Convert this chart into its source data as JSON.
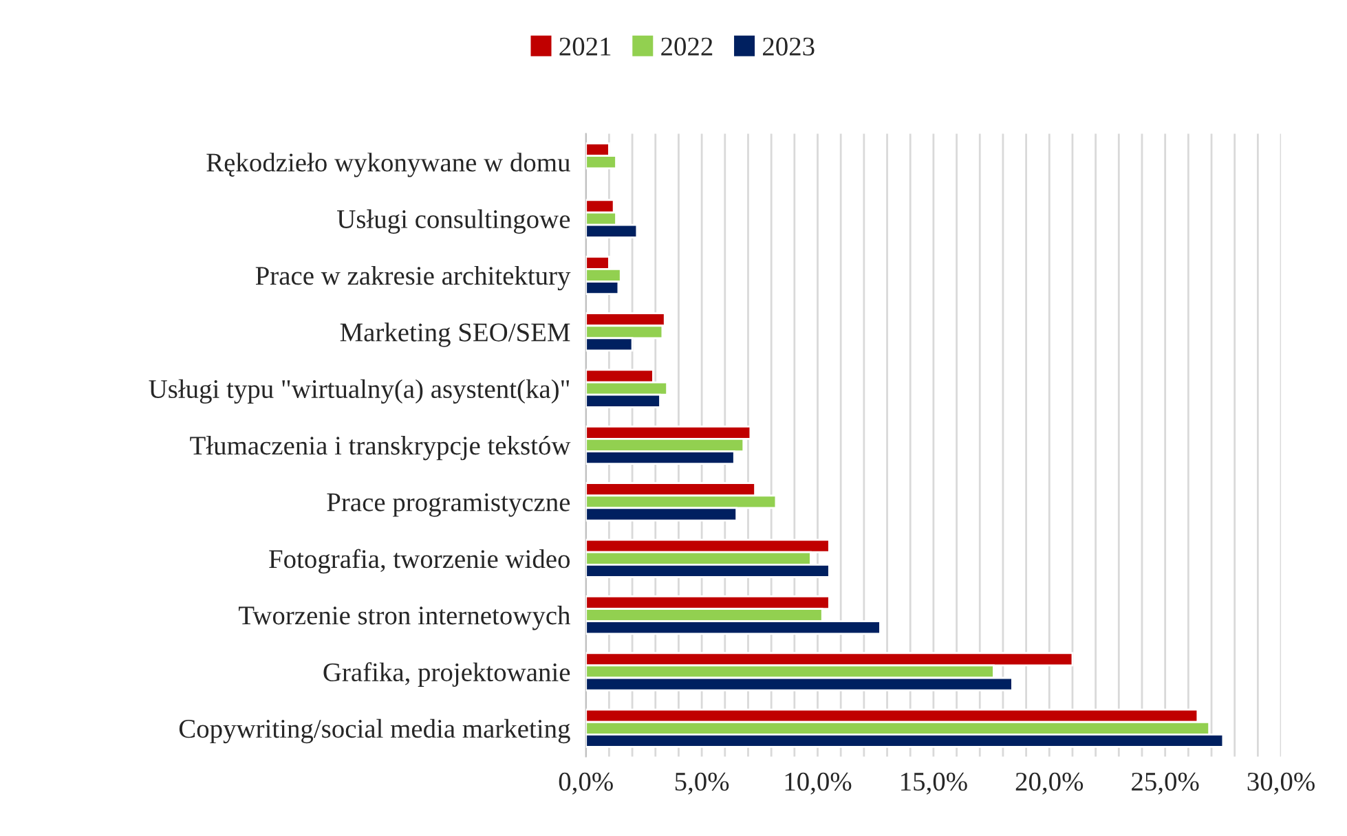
{
  "chart_data": {
    "type": "bar",
    "orientation": "horizontal",
    "categories": [
      "Rękodzieło wykonywane w domu",
      "Usługi consultingowe",
      "Prace w zakresie architektury",
      "Marketing SEO/SEM",
      "Usługi typu \"wirtualny(a) asystent(ka)\"",
      "Tłumaczenia i transkrypcje tekstów",
      "Prace programistyczne",
      "Fotografia, tworzenie wideo",
      "Tworzenie stron internetowych",
      "Grafika, projektowanie",
      "Copywriting/social media marketing"
    ],
    "series": [
      {
        "name": "2021",
        "color": "#c00000",
        "values": [
          1.0,
          1.2,
          1.0,
          3.4,
          2.9,
          7.1,
          7.3,
          10.5,
          10.5,
          21.0,
          26.4
        ]
      },
      {
        "name": "2022",
        "color": "#92d050",
        "values": [
          1.3,
          1.3,
          1.5,
          3.3,
          3.5,
          6.8,
          8.2,
          9.7,
          10.2,
          17.6,
          26.9
        ]
      },
      {
        "name": "2023",
        "color": "#002060",
        "values": [
          null,
          2.2,
          1.4,
          2.0,
          3.2,
          6.4,
          6.5,
          10.5,
          12.7,
          18.4,
          27.5
        ]
      }
    ],
    "xlim": [
      0,
      30
    ],
    "xticks": [
      {
        "value": 0,
        "label": "0,0%"
      },
      {
        "value": 1,
        "label": null
      },
      {
        "value": 2,
        "label": null
      },
      {
        "value": 3,
        "label": null
      },
      {
        "value": 4,
        "label": null
      },
      {
        "value": 5,
        "label": "5,0%"
      },
      {
        "value": 6,
        "label": null
      },
      {
        "value": 7,
        "label": null
      },
      {
        "value": 8,
        "label": null
      },
      {
        "value": 9,
        "label": null
      },
      {
        "value": 10,
        "label": "10,0%"
      },
      {
        "value": 11,
        "label": null
      },
      {
        "value": 12,
        "label": null
      },
      {
        "value": 13,
        "label": null
      },
      {
        "value": 14,
        "label": null
      },
      {
        "value": 15,
        "label": "15,0%"
      },
      {
        "value": 16,
        "label": null
      },
      {
        "value": 17,
        "label": null
      },
      {
        "value": 18,
        "label": null
      },
      {
        "value": 19,
        "label": null
      },
      {
        "value": 20,
        "label": "20,0%"
      },
      {
        "value": 21,
        "label": null
      },
      {
        "value": 22,
        "label": null
      },
      {
        "value": 23,
        "label": null
      },
      {
        "value": 24,
        "label": null
      },
      {
        "value": 25,
        "label": "25,0%"
      },
      {
        "value": 26,
        "label": null
      },
      {
        "value": 27,
        "label": null
      },
      {
        "value": 28,
        "label": null
      },
      {
        "value": 29,
        "label": null
      },
      {
        "value": 30,
        "label": "30,0%"
      }
    ],
    "grid": "x",
    "legend": "top"
  }
}
